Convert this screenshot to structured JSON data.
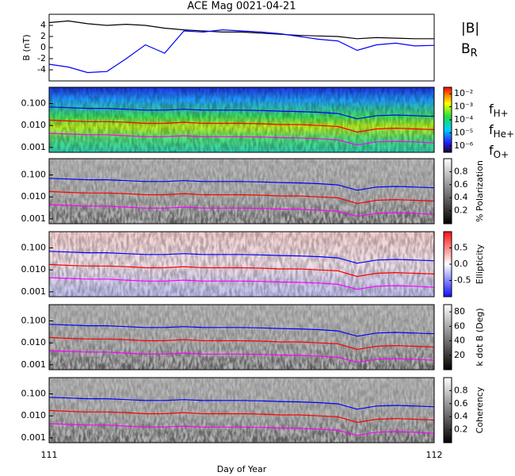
{
  "chart_data": [
    {
      "type": "line",
      "title": "ACE Mag 0021-04-21",
      "ylabel": "B (nT)",
      "x": [
        111.0,
        111.05,
        111.1,
        111.15,
        111.2,
        111.25,
        111.3,
        111.35,
        111.4,
        111.45,
        111.5,
        111.55,
        111.6,
        111.65,
        111.7,
        111.75,
        111.8,
        111.85,
        111.9,
        111.95,
        112.0
      ],
      "xlim": [
        111,
        112
      ],
      "ylim": [
        -6,
        6
      ],
      "yticks": [
        -4,
        -2,
        0,
        2,
        4
      ],
      "series": [
        {
          "name": "|B|",
          "color": "#000000",
          "values": [
            4.5,
            4.8,
            4.3,
            4.0,
            4.2,
            4.0,
            3.5,
            3.2,
            3.0,
            2.8,
            2.8,
            2.6,
            2.4,
            2.2,
            2.1,
            2.0,
            1.6,
            1.8,
            1.7,
            1.6,
            1.6
          ]
        },
        {
          "name": "B",
          "subscript": "R",
          "color": "#0000ff",
          "values": [
            -3,
            -3.5,
            -4.5,
            -4.3,
            -2,
            0.5,
            -1,
            3,
            2.8,
            3.2,
            3.0,
            2.8,
            2.5,
            2.0,
            1.5,
            1.2,
            -0.5,
            0.5,
            0.8,
            0.3,
            0.4
          ]
        }
      ]
    },
    {
      "type": "spectrogram",
      "x": [
        111.0,
        111.05,
        111.1,
        111.15,
        111.2,
        111.25,
        111.3,
        111.35,
        111.4,
        111.45,
        111.5,
        111.55,
        111.6,
        111.65,
        111.7,
        111.75,
        111.8,
        111.85,
        111.9,
        111.95,
        112.0
      ],
      "xlim": [
        111,
        112
      ],
      "xticks": [
        111,
        112
      ],
      "xlabel": "Day of Year",
      "log_y": true,
      "ylim": [
        0.0006,
        0.55
      ],
      "yticks": [
        0.001,
        {
          "value": 0.01,
          "label": "0.010"
        },
        {
          "value": 0.1,
          "label": "0.100"
        }
      ],
      "series": [
        {
          "name": "f",
          "subscript": "H+",
          "color": "#0000ff",
          "values": [
            0.07,
            0.065,
            0.06,
            0.06,
            0.055,
            0.05,
            0.05,
            0.055,
            0.05,
            0.05,
            0.05,
            0.048,
            0.045,
            0.043,
            0.04,
            0.035,
            0.02,
            0.028,
            0.03,
            0.028,
            0.026
          ]
        },
        {
          "name": "f",
          "subscript": "He+",
          "color": "#ff0000",
          "values": [
            0.0175,
            0.016,
            0.015,
            0.015,
            0.014,
            0.0125,
            0.0125,
            0.014,
            0.0125,
            0.0125,
            0.0125,
            0.012,
            0.011,
            0.011,
            0.01,
            0.009,
            0.005,
            0.007,
            0.0075,
            0.007,
            0.0065
          ]
        },
        {
          "name": "f",
          "subscript": "O+",
          "color": "#ff00ff",
          "values": [
            0.0044,
            0.0041,
            0.0038,
            0.0038,
            0.0034,
            0.0031,
            0.0031,
            0.0034,
            0.0031,
            0.0031,
            0.0031,
            0.003,
            0.0028,
            0.0027,
            0.0025,
            0.0022,
            0.0013,
            0.0018,
            0.0019,
            0.0018,
            0.0016
          ]
        }
      ],
      "panels": [
        {
          "colormap": "rainbow",
          "clim": [
            -6.5,
            -1.5
          ],
          "cticks": [
            {
              "value": -2,
              "label": "10⁻²"
            },
            {
              "value": -3,
              "label": "10⁻³"
            },
            {
              "value": -4,
              "label": "10⁻⁴"
            },
            {
              "value": -5,
              "label": "10⁻⁵"
            },
            {
              "value": -6,
              "label": "10⁻⁶"
            }
          ]
        },
        {
          "colormap": "gray",
          "clim": [
            0,
            1
          ],
          "cticks": [
            0.2,
            0.4,
            0.6,
            0.8
          ],
          "clabel": "% Polarization"
        },
        {
          "colormap": "bwr",
          "clim": [
            -1,
            1
          ],
          "cticks": [
            -0.5,
            {
              "value": 0,
              "label": "0.0"
            },
            0.5
          ],
          "clabel": "Ellipticity"
        },
        {
          "colormap": "gray",
          "clim": [
            0,
            90
          ],
          "cticks": [
            20,
            40,
            60,
            80
          ],
          "clabel": "k dot B (Deg)"
        },
        {
          "colormap": "gray",
          "clim": [
            0,
            1
          ],
          "cticks": [
            0.2,
            0.4,
            0.6,
            0.8
          ],
          "clabel": "Coherency"
        }
      ]
    }
  ]
}
